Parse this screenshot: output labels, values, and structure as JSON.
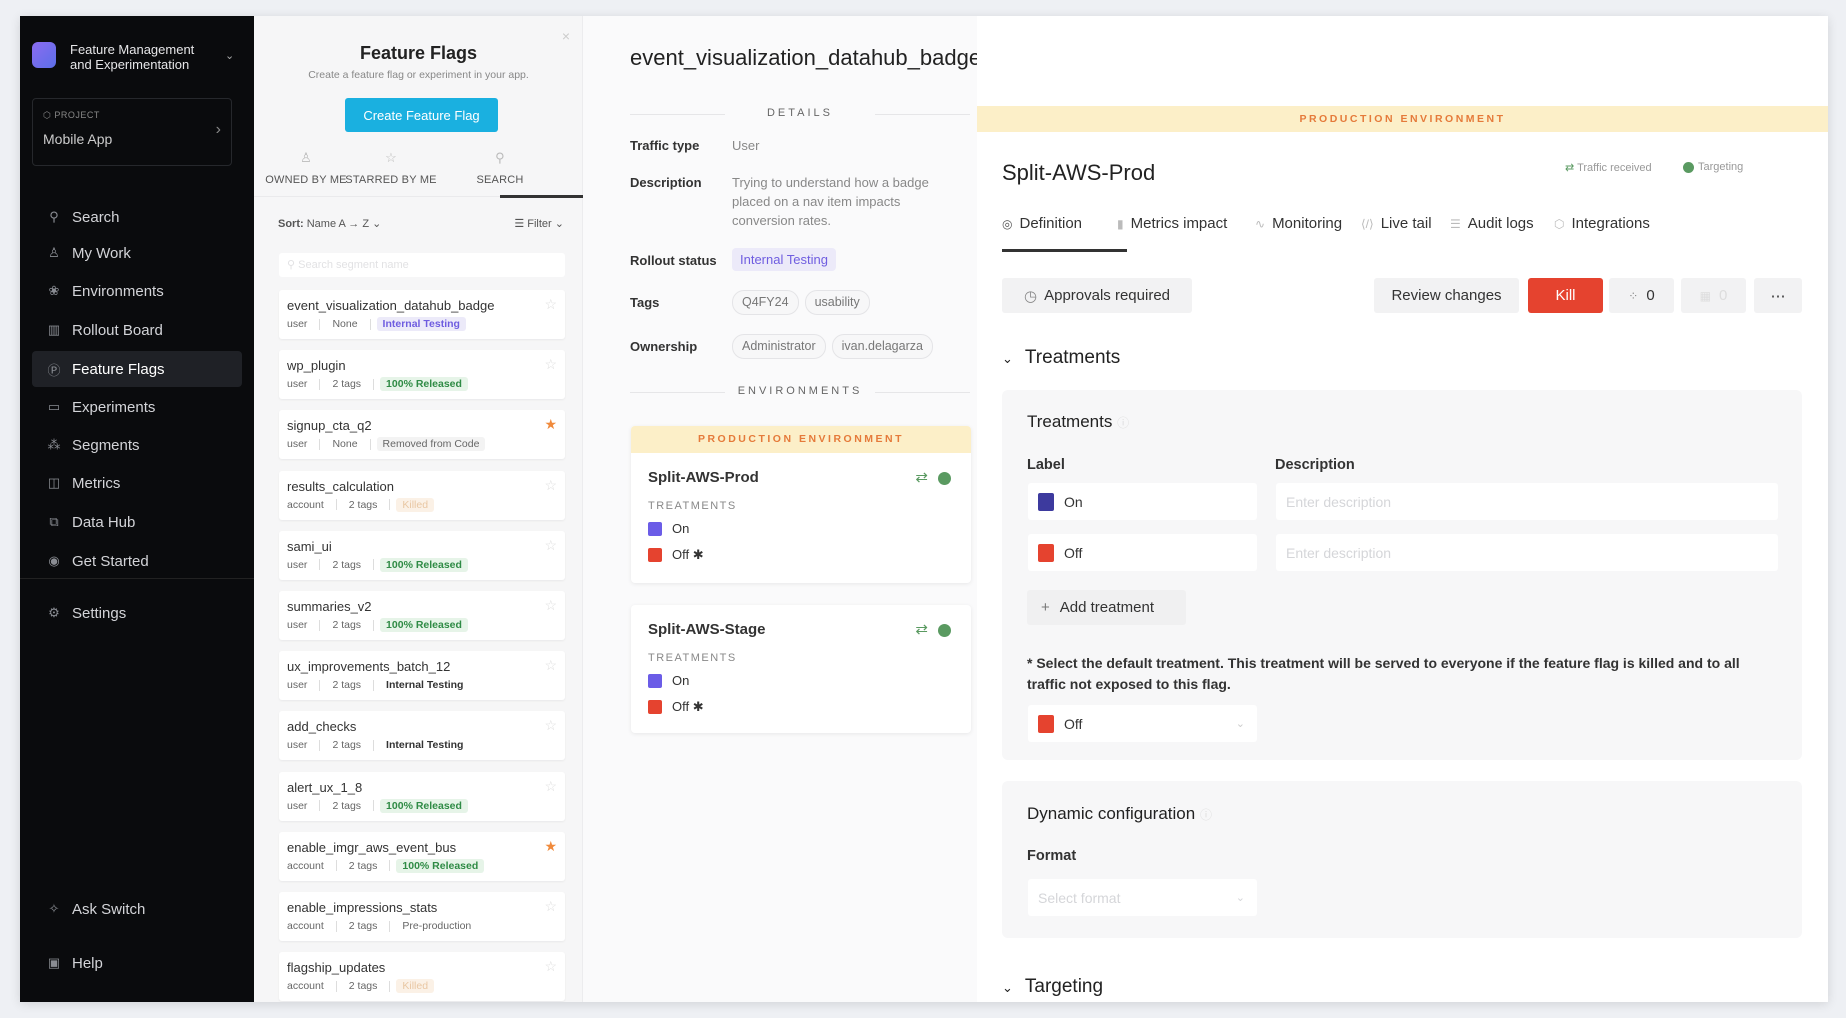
{
  "app": {
    "name_line1": "Feature Management",
    "name_line2": "and Experimentation",
    "project_label": "PROJECT",
    "project_name": "Mobile App"
  },
  "sidebar": {
    "items": [
      {
        "label": "Search",
        "icon": "search-icon",
        "glyph": "⚲"
      },
      {
        "label": "My Work",
        "icon": "user-icon",
        "glyph": "♙"
      },
      {
        "label": "Environments",
        "icon": "environments-icon",
        "glyph": "❀"
      },
      {
        "label": "Rollout Board",
        "icon": "board-icon",
        "glyph": "▥"
      },
      {
        "label": "Feature Flags",
        "icon": "flag-icon",
        "glyph": "Ⓟ",
        "active": true
      },
      {
        "label": "Experiments",
        "icon": "experiments-icon",
        "glyph": "▭"
      },
      {
        "label": "Segments",
        "icon": "segments-icon",
        "glyph": "⁂"
      },
      {
        "label": "Metrics",
        "icon": "metrics-icon",
        "glyph": "◫"
      },
      {
        "label": "Data Hub",
        "icon": "data-hub-icon",
        "glyph": "⧉"
      },
      {
        "label": "Get Started",
        "icon": "play-icon",
        "glyph": "◉"
      }
    ],
    "settings": "Settings",
    "ask": "Ask Switch",
    "help": "Help"
  },
  "list": {
    "title": "Feature Flags",
    "subtitle": "Create a feature flag or experiment in your app.",
    "create": "Create Feature Flag",
    "tabs": [
      "OWNED BY ME",
      "STARRED BY ME",
      "SEARCH"
    ],
    "sort_label": "Sort:",
    "sort_value": "Name  A → Z",
    "filter": "Filter",
    "search_placeholder": "Search segment name",
    "flags": [
      {
        "name": "event_visualization_datahub_badge",
        "type": "user",
        "tags": "None",
        "status": "Internal Testing",
        "cls": "b-internal-purple",
        "starred": false
      },
      {
        "name": "wp_plugin",
        "type": "user",
        "tags": "2 tags",
        "status": "100% Released",
        "cls": "b-released",
        "starred": false
      },
      {
        "name": "signup_cta_q2",
        "type": "user",
        "tags": "None",
        "status": "Removed from Code",
        "cls": "b-removed",
        "starred": true
      },
      {
        "name": "results_calculation",
        "type": "account",
        "tags": "2 tags",
        "status": "Killed",
        "cls": "b-killed",
        "starred": false
      },
      {
        "name": "sami_ui",
        "type": "user",
        "tags": "2 tags",
        "status": "100% Released",
        "cls": "b-released",
        "starred": false
      },
      {
        "name": "summaries_v2",
        "type": "user",
        "tags": "2 tags",
        "status": "100% Released",
        "cls": "b-released",
        "starred": false
      },
      {
        "name": "ux_improvements_batch_12",
        "type": "user",
        "tags": "2 tags",
        "status": "Internal Testing",
        "cls": "b-internal",
        "starred": false
      },
      {
        "name": "add_checks",
        "type": "user",
        "tags": "2 tags",
        "status": "Internal Testing",
        "cls": "b-internal",
        "starred": false
      },
      {
        "name": "alert_ux_1_8",
        "type": "user",
        "tags": "2 tags",
        "status": "100% Released",
        "cls": "b-released",
        "starred": false
      },
      {
        "name": "enable_imgr_aws_event_bus",
        "type": "account",
        "tags": "2 tags",
        "status": "100% Released",
        "cls": "b-released",
        "starred": true
      },
      {
        "name": "enable_impressions_stats",
        "type": "account",
        "tags": "2 tags",
        "status": "Pre-production",
        "cls": "b-pre",
        "starred": false
      },
      {
        "name": "flagship_updates",
        "type": "account",
        "tags": "2 tags",
        "status": "Killed",
        "cls": "b-killed",
        "starred": false
      }
    ]
  },
  "details": {
    "title": "event_visualization_datahub_badge",
    "section": "DETAILS",
    "traffic_label": "Traffic type",
    "traffic": "User",
    "desc_label": "Description",
    "desc": "Trying to understand how a badge placed on a nav item impacts conversion rates.",
    "rollout_label": "Rollout status",
    "rollout": "Internal Testing",
    "tags_label": "Tags",
    "tags": [
      "Q4FY24",
      "usability"
    ],
    "owner_label": "Ownership",
    "owners": [
      "Administrator",
      "ivan.delagarza"
    ],
    "env_section": "ENVIRONMENTS",
    "envs": [
      {
        "banner": "PRODUCTION ENVIRONMENT",
        "name": "Split-AWS-Prod",
        "treat_label": "TREATMENTS",
        "on": "On",
        "off": "Off ✱"
      },
      {
        "name": "Split-AWS-Stage",
        "treat_label": "TREATMENTS",
        "on": "On",
        "off": "Off ✱"
      }
    ]
  },
  "right": {
    "banner": "PRODUCTION ENVIRONMENT",
    "title": "Split-AWS-Prod",
    "traffic": "Traffic received",
    "targeting": "Targeting",
    "tabs": [
      "Definition",
      "Metrics impact",
      "Monitoring",
      "Live tail",
      "Audit logs",
      "Integrations"
    ],
    "approvals": "Approvals required",
    "review": "Review changes",
    "kill": "Kill",
    "count1": "0",
    "count2": "0",
    "treat_section": "Treatments",
    "treat_title": "Treatments",
    "label_col": "Label",
    "desc_col": "Description",
    "treatments": [
      {
        "label": "On",
        "color": "#3d3a9e"
      },
      {
        "label": "Off",
        "color": "#e5432f"
      }
    ],
    "desc_placeholder": "Enter description",
    "add": "Add treatment",
    "note": "* Select the default treatment. This treatment will be served to everyone if the feature flag is killed and to all traffic not exposed to this flag.",
    "default": "Off",
    "dyn_title": "Dynamic configuration",
    "format_label": "Format",
    "format_placeholder": "Select format"
  },
  "colors": {
    "accent": "#1ab0e0",
    "kill": "#e5432f",
    "on": "#6b5ce7",
    "off": "#e5432f",
    "active": "#5a9a61",
    "banner": "#fcefc8"
  }
}
